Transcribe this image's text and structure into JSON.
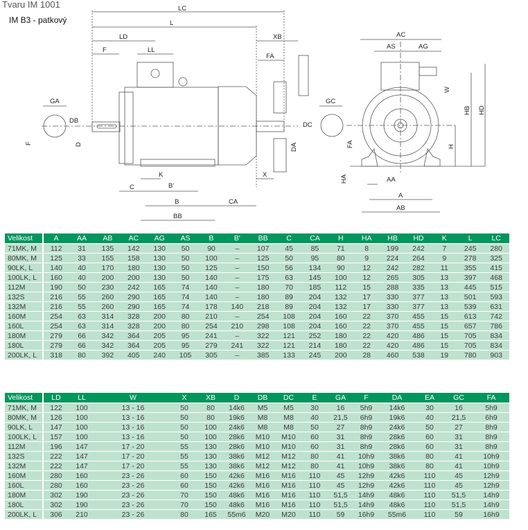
{
  "header": {
    "title": "Tvaru IM 1001",
    "subtitle": "IM B3 - patkový"
  },
  "drawing": {
    "labels": {
      "LC": "LC",
      "L": "L",
      "LD": "LD",
      "F_top": "F",
      "LL": "LL",
      "XB": "XB",
      "FA_top": "FA",
      "GA": "GA",
      "DB": "DB",
      "D": "D",
      "F_side": "F",
      "K": "K",
      "C": "C",
      "B_prime": "B'",
      "B": "B",
      "CA": "CA",
      "BB": "BB",
      "X": "X",
      "DA": "DA",
      "DC": "DC",
      "AC": "AC",
      "AS": "AS",
      "AG": "AG",
      "W": "W",
      "GC": "GC",
      "FA_side": "FA",
      "HB": "HB",
      "HD": "HD",
      "H": "H",
      "HA": "HA",
      "AA": "AA",
      "A": "A",
      "AB": "AB"
    }
  },
  "table1": {
    "headers": [
      "Velikost",
      "A",
      "AA",
      "AB",
      "AC",
      "AG",
      "AS",
      "B",
      "B'",
      "BB",
      "C",
      "CA",
      "H",
      "HA",
      "HB",
      "HD",
      "K",
      "L",
      "LC"
    ],
    "rows": [
      [
        "71MK, M",
        "112",
        "31",
        "135",
        "142",
        "130",
        "50",
        "90",
        "–",
        "107",
        "45",
        "85",
        "71",
        "8",
        "199",
        "242",
        "7",
        "245",
        "280"
      ],
      [
        "80MK, M",
        "125",
        "33",
        "155",
        "158",
        "130",
        "50",
        "100",
        "–",
        "125",
        "50",
        "95",
        "80",
        "9",
        "224",
        "264",
        "9",
        "278",
        "325"
      ],
      [
        "90LK, L",
        "140",
        "40",
        "170",
        "180",
        "130",
        "50",
        "125",
        "–",
        "150",
        "56",
        "134",
        "90",
        "12",
        "242",
        "282",
        "11",
        "355",
        "415"
      ],
      [
        "100LK, L",
        "160",
        "40",
        "200",
        "200",
        "130",
        "50",
        "140",
        "–",
        "175",
        "63",
        "145",
        "100",
        "12",
        "265",
        "305",
        "13",
        "397",
        "468"
      ],
      [
        "112M",
        "190",
        "50",
        "230",
        "242",
        "165",
        "74",
        "140",
        "–",
        "180",
        "70",
        "185",
        "112",
        "15",
        "288",
        "335",
        "13",
        "445",
        "515"
      ],
      [
        "132S",
        "216",
        "55",
        "260",
        "290",
        "165",
        "74",
        "140",
        "–",
        "180",
        "89",
        "204",
        "132",
        "17",
        "330",
        "377",
        "13",
        "501",
        "593"
      ],
      [
        "132M",
        "216",
        "55",
        "260",
        "290",
        "165",
        "74",
        "178",
        "140",
        "218",
        "89",
        "204",
        "132",
        "17",
        "330",
        "377",
        "13",
        "539",
        "631"
      ],
      [
        "160M",
        "254",
        "63",
        "314",
        "328",
        "200",
        "80",
        "210",
        "–",
        "254",
        "108",
        "204",
        "160",
        "22",
        "370",
        "455",
        "15",
        "613",
        "742"
      ],
      [
        "160L",
        "254",
        "63",
        "314",
        "328",
        "200",
        "80",
        "254",
        "210",
        "298",
        "108",
        "204",
        "160",
        "22",
        "370",
        "455",
        "15",
        "657",
        "786"
      ],
      [
        "180M",
        "279",
        "66",
        "342",
        "364",
        "205",
        "95",
        "241",
        "–",
        "322",
        "121",
        "252",
        "180",
        "22",
        "420",
        "486",
        "15",
        "705",
        "834"
      ],
      [
        "180L",
        "279",
        "66",
        "342",
        "364",
        "205",
        "95",
        "279",
        "241",
        "322",
        "121",
        "214",
        "180",
        "22",
        "420",
        "486",
        "15",
        "705",
        "834"
      ],
      [
        "200LK, L",
        "318",
        "80",
        "392",
        "405",
        "240",
        "105",
        "305",
        "–",
        "385",
        "133",
        "245",
        "200",
        "28",
        "460",
        "538",
        "19",
        "780",
        "903"
      ]
    ]
  },
  "table2": {
    "headers": [
      "Velikost",
      "LD",
      "LL",
      "W",
      "X",
      "XB",
      "D",
      "DB",
      "DC",
      "E",
      "GA",
      "F",
      "DA",
      "EA",
      "GC",
      "FA"
    ],
    "rows": [
      [
        "71MK, M",
        "122",
        "100",
        "13 - 16",
        "50",
        "80",
        "14k6",
        "M5",
        "M5",
        "30",
        "16",
        "5h9",
        "14k6",
        "30",
        "16",
        "5h9"
      ],
      [
        "80MK, M",
        "126",
        "100",
        "13 - 16",
        "50",
        "80",
        "19k6",
        "M8",
        "M8",
        "40",
        "21,5",
        "6h9",
        "19k6",
        "40",
        "21,5",
        "6h9"
      ],
      [
        "90LK, L",
        "147",
        "100",
        "13 - 16",
        "50",
        "100",
        "24k6",
        "M8",
        "M8",
        "50",
        "27",
        "8h9",
        "24k6",
        "50",
        "27",
        "8h9"
      ],
      [
        "100LK, L",
        "157",
        "100",
        "13 - 16",
        "50",
        "100",
        "28k6",
        "M10",
        "M10",
        "60",
        "31",
        "8h9",
        "28k6",
        "60",
        "31",
        "8h9"
      ],
      [
        "112M",
        "196",
        "147",
        "17 - 20",
        "55",
        "130",
        "28k6",
        "M10",
        "M10",
        "60",
        "31",
        "8h9",
        "28k6",
        "60",
        "31",
        "8h9"
      ],
      [
        "132S",
        "222",
        "147",
        "17 - 20",
        "55",
        "130",
        "38k6",
        "M12",
        "M12",
        "80",
        "41",
        "10h9",
        "38k6",
        "80",
        "41",
        "10h9"
      ],
      [
        "132M",
        "222",
        "147",
        "17 - 20",
        "55",
        "130",
        "38k6",
        "M12",
        "M12",
        "80",
        "41",
        "10h9",
        "38k6",
        "80",
        "41",
        "10h9"
      ],
      [
        "160M",
        "280",
        "160",
        "23 - 26",
        "60",
        "150",
        "42k6",
        "M16",
        "M16",
        "110",
        "45",
        "12h9",
        "42k6",
        "110",
        "45",
        "12h9"
      ],
      [
        "160L",
        "280",
        "160",
        "23 - 26",
        "60",
        "150",
        "42k6",
        "M16",
        "M16",
        "110",
        "45",
        "12h9",
        "42k6",
        "110",
        "45",
        "12h9"
      ],
      [
        "180M",
        "302",
        "190",
        "23 - 26",
        "70",
        "150",
        "48k6",
        "M16",
        "M16",
        "110",
        "51,5",
        "14h9",
        "48k6",
        "110",
        "51,5",
        "14h9"
      ],
      [
        "180L",
        "302",
        "190",
        "23 - 26",
        "70",
        "150",
        "48k6",
        "M16",
        "M16",
        "110",
        "51,5",
        "14h9",
        "48k6",
        "110",
        "51,5",
        "14h9"
      ],
      [
        "200LK, L",
        "306",
        "210",
        "23 - 26",
        "80",
        "165",
        "55m6",
        "M20",
        "M20",
        "110",
        "59",
        "16h9",
        "55m6",
        "110",
        "59",
        "16h9"
      ]
    ]
  },
  "colors": {
    "header_bg": "#00965e",
    "row_bg": "#bfe2cf",
    "header_text": "#ffffff"
  }
}
